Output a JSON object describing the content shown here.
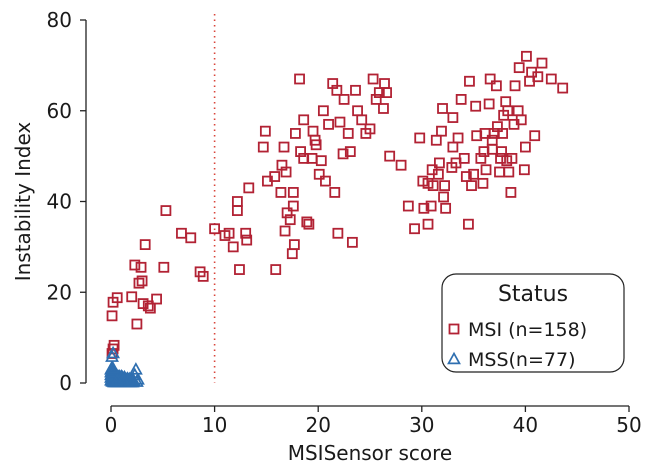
{
  "chart_data": {
    "type": "scatter",
    "xlabel": "MSISensor score",
    "ylabel": "Instability Index",
    "xlim": [
      0,
      50
    ],
    "ylim": [
      0,
      80
    ],
    "xticks": [
      0,
      10,
      20,
      30,
      40,
      50
    ],
    "yticks": [
      0,
      20,
      40,
      60,
      80
    ],
    "grid": false,
    "reference_line": {
      "x": 10,
      "style": "dotted",
      "color": "#d9453b"
    },
    "legend": {
      "title": "Status",
      "placement": "bottom-right",
      "entries": [
        {
          "label": "MSI (n=158)",
          "series": "MSI"
        },
        {
          "label": "MSS(n=77)",
          "series": "MSS"
        }
      ]
    },
    "series": [
      {
        "name": "MSI",
        "marker": "square",
        "color": "#b22234",
        "points": [
          [
            0.1,
            14.8
          ],
          [
            0.2,
            17.8
          ],
          [
            0.6,
            18.8
          ],
          [
            0.1,
            6.5
          ],
          [
            0.3,
            8.3
          ],
          [
            0.2,
            7.5
          ],
          [
            2.0,
            19.0
          ],
          [
            2.5,
            13.0
          ],
          [
            2.3,
            26.0
          ],
          [
            2.9,
            25.5
          ],
          [
            2.7,
            22.0
          ],
          [
            3.0,
            22.5
          ],
          [
            3.1,
            17.5
          ],
          [
            3.6,
            17.0
          ],
          [
            3.8,
            16.5
          ],
          [
            3.3,
            30.5
          ],
          [
            4.4,
            18.5
          ],
          [
            5.1,
            25.5
          ],
          [
            5.3,
            38.0
          ],
          [
            6.8,
            33.0
          ],
          [
            7.7,
            32.0
          ],
          [
            8.6,
            24.5
          ],
          [
            8.9,
            23.5
          ],
          [
            10.0,
            34.0
          ],
          [
            11.0,
            32.5
          ],
          [
            11.4,
            33.0
          ],
          [
            11.8,
            30.0
          ],
          [
            12.2,
            38.0
          ],
          [
            12.2,
            40.0
          ],
          [
            12.4,
            25.0
          ],
          [
            13.1,
            31.5
          ],
          [
            13.0,
            33.0
          ],
          [
            13.3,
            43.0
          ],
          [
            14.7,
            52.0
          ],
          [
            14.9,
            55.5
          ],
          [
            15.1,
            44.5
          ],
          [
            15.8,
            45.5
          ],
          [
            15.9,
            25.0
          ],
          [
            16.4,
            42.0
          ],
          [
            16.5,
            48.0
          ],
          [
            16.7,
            52.0
          ],
          [
            16.9,
            46.5
          ],
          [
            17.0,
            37.5
          ],
          [
            16.8,
            33.5
          ],
          [
            17.3,
            36.0
          ],
          [
            17.5,
            28.5
          ],
          [
            17.7,
            30.5
          ],
          [
            17.6,
            42.0
          ],
          [
            17.6,
            39.0
          ],
          [
            17.8,
            55.0
          ],
          [
            18.2,
            67.0
          ],
          [
            18.3,
            51.0
          ],
          [
            18.6,
            58.0
          ],
          [
            18.6,
            49.5
          ],
          [
            18.9,
            35.5
          ],
          [
            19.1,
            35.0
          ],
          [
            19.4,
            49.5
          ],
          [
            19.5,
            55.5
          ],
          [
            19.7,
            53.5
          ],
          [
            19.8,
            52.5
          ],
          [
            20.1,
            46.0
          ],
          [
            20.5,
            60.0
          ],
          [
            20.7,
            44.5
          ],
          [
            20.3,
            49.0
          ],
          [
            21.0,
            57.0
          ],
          [
            21.4,
            66.0
          ],
          [
            21.8,
            64.5
          ],
          [
            21.6,
            42.0
          ],
          [
            21.9,
            33.0
          ],
          [
            22.1,
            57.5
          ],
          [
            22.4,
            50.5
          ],
          [
            22.5,
            62.5
          ],
          [
            22.9,
            55.0
          ],
          [
            23.1,
            51.0
          ],
          [
            23.3,
            31.0
          ],
          [
            23.6,
            64.5
          ],
          [
            23.8,
            60.0
          ],
          [
            24.2,
            58.0
          ],
          [
            24.6,
            55.0
          ],
          [
            25.0,
            56.0
          ],
          [
            25.3,
            67.0
          ],
          [
            25.6,
            62.5
          ],
          [
            25.9,
            64.0
          ],
          [
            26.3,
            60.5
          ],
          [
            26.4,
            66.0
          ],
          [
            26.6,
            64.0
          ],
          [
            26.9,
            50.0
          ],
          [
            28.0,
            48.0
          ],
          [
            29.3,
            34.0
          ],
          [
            30.1,
            44.5
          ],
          [
            30.2,
            38.5
          ],
          [
            30.6,
            44.0
          ],
          [
            30.9,
            39.0
          ],
          [
            31.1,
            43.5
          ],
          [
            30.6,
            35.0
          ],
          [
            31.4,
            53.5
          ],
          [
            31.6,
            46.0
          ],
          [
            31.9,
            55.5
          ],
          [
            32.0,
            60.5
          ],
          [
            32.2,
            43.5
          ],
          [
            32.1,
            41.0
          ],
          [
            32.3,
            38.5
          ],
          [
            32.9,
            47.5
          ],
          [
            33.0,
            58.5
          ],
          [
            33.3,
            48.5
          ],
          [
            33.5,
            54.0
          ],
          [
            33.8,
            62.5
          ],
          [
            34.1,
            49.5
          ],
          [
            34.3,
            45.5
          ],
          [
            34.5,
            35.0
          ],
          [
            34.6,
            66.5
          ],
          [
            34.8,
            43.5
          ],
          [
            35.0,
            46.0
          ],
          [
            35.3,
            54.5
          ],
          [
            35.7,
            49.5
          ],
          [
            35.9,
            44.0
          ],
          [
            36.1,
            55.0
          ],
          [
            36.2,
            47.0
          ],
          [
            36.5,
            61.5
          ],
          [
            36.8,
            51.5
          ],
          [
            36.8,
            53.5
          ],
          [
            37.0,
            55.0
          ],
          [
            37.2,
            65.5
          ],
          [
            37.5,
            46.5
          ],
          [
            37.6,
            49.5
          ],
          [
            37.7,
            51.0
          ],
          [
            37.8,
            55.0
          ],
          [
            37.9,
            59.0
          ],
          [
            38.1,
            62.0
          ],
          [
            38.3,
            60.0
          ],
          [
            38.2,
            49.0
          ],
          [
            38.4,
            46.5
          ],
          [
            38.6,
            42.0
          ],
          [
            38.7,
            49.5
          ],
          [
            38.9,
            57.0
          ],
          [
            39.0,
            65.5
          ],
          [
            39.3,
            60.0
          ],
          [
            39.6,
            58.0
          ],
          [
            39.9,
            47.0
          ],
          [
            40.1,
            72.0
          ],
          [
            40.4,
            66.5
          ],
          [
            40.6,
            68.5
          ],
          [
            40.9,
            54.5
          ],
          [
            41.2,
            67.5
          ],
          [
            41.6,
            70.5
          ],
          [
            42.5,
            67.0
          ],
          [
            43.6,
            65.0
          ],
          [
            36.6,
            67.0
          ],
          [
            35.2,
            61.0
          ],
          [
            31.0,
            47.0
          ],
          [
            28.7,
            39.0
          ],
          [
            33.0,
            52.0
          ],
          [
            36.0,
            51.0
          ],
          [
            29.8,
            54.0
          ],
          [
            39.4,
            69.5
          ],
          [
            40.0,
            52.0
          ],
          [
            31.7,
            48.5
          ],
          [
            37.3,
            56.5
          ]
        ]
      },
      {
        "name": "MSS",
        "marker": "triangle",
        "color": "#2f6fb0",
        "points": [
          [
            0.1,
            5.8
          ],
          [
            0.2,
            6.6
          ],
          [
            0.1,
            0.4
          ],
          [
            0.1,
            1.0
          ],
          [
            0.1,
            1.6
          ],
          [
            0.1,
            2.2
          ],
          [
            0.1,
            2.8
          ],
          [
            0.2,
            0.3
          ],
          [
            0.2,
            0.8
          ],
          [
            0.2,
            1.4
          ],
          [
            0.2,
            2.0
          ],
          [
            0.2,
            2.6
          ],
          [
            0.3,
            0.2
          ],
          [
            0.3,
            0.7
          ],
          [
            0.3,
            1.2
          ],
          [
            0.3,
            1.8
          ],
          [
            0.3,
            2.4
          ],
          [
            0.4,
            0.3
          ],
          [
            0.4,
            0.9
          ],
          [
            0.4,
            1.5
          ],
          [
            0.4,
            2.1
          ],
          [
            0.5,
            0.2
          ],
          [
            0.5,
            0.8
          ],
          [
            0.5,
            1.3
          ],
          [
            0.5,
            1.9
          ],
          [
            0.6,
            0.4
          ],
          [
            0.6,
            1.0
          ],
          [
            0.6,
            1.6
          ],
          [
            0.7,
            0.2
          ],
          [
            0.7,
            0.8
          ],
          [
            0.7,
            1.4
          ],
          [
            0.8,
            0.3
          ],
          [
            0.8,
            0.9
          ],
          [
            0.8,
            1.5
          ],
          [
            0.9,
            0.2
          ],
          [
            0.9,
            0.7
          ],
          [
            0.9,
            1.2
          ],
          [
            1.0,
            0.3
          ],
          [
            1.0,
            0.9
          ],
          [
            1.0,
            1.5
          ],
          [
            1.1,
            0.2
          ],
          [
            1.1,
            0.8
          ],
          [
            1.1,
            1.3
          ],
          [
            1.2,
            0.4
          ],
          [
            1.2,
            1.0
          ],
          [
            1.3,
            0.2
          ],
          [
            1.3,
            0.7
          ],
          [
            1.3,
            1.3
          ],
          [
            1.4,
            0.3
          ],
          [
            1.4,
            0.9
          ],
          [
            1.5,
            0.2
          ],
          [
            1.5,
            0.8
          ],
          [
            1.6,
            0.4
          ],
          [
            1.6,
            1.0
          ],
          [
            1.7,
            0.2
          ],
          [
            1.7,
            0.7
          ],
          [
            1.8,
            0.3
          ],
          [
            1.8,
            0.9
          ],
          [
            1.9,
            0.2
          ],
          [
            1.9,
            0.6
          ],
          [
            2.0,
            0.3
          ],
          [
            2.0,
            0.9
          ],
          [
            2.1,
            0.2
          ],
          [
            2.2,
            0.5
          ],
          [
            2.3,
            1.8
          ],
          [
            2.4,
            3.0
          ],
          [
            2.5,
            0.3
          ],
          [
            2.6,
            0.8
          ],
          [
            0.0,
            0.6
          ],
          [
            0.0,
            1.2
          ],
          [
            0.0,
            1.8
          ],
          [
            0.0,
            2.4
          ],
          [
            0.0,
            3.0
          ],
          [
            0.1,
            3.4
          ],
          [
            0.2,
            3.2
          ],
          [
            1.2,
            0.6
          ],
          [
            0.6,
            0.6
          ]
        ]
      }
    ]
  }
}
